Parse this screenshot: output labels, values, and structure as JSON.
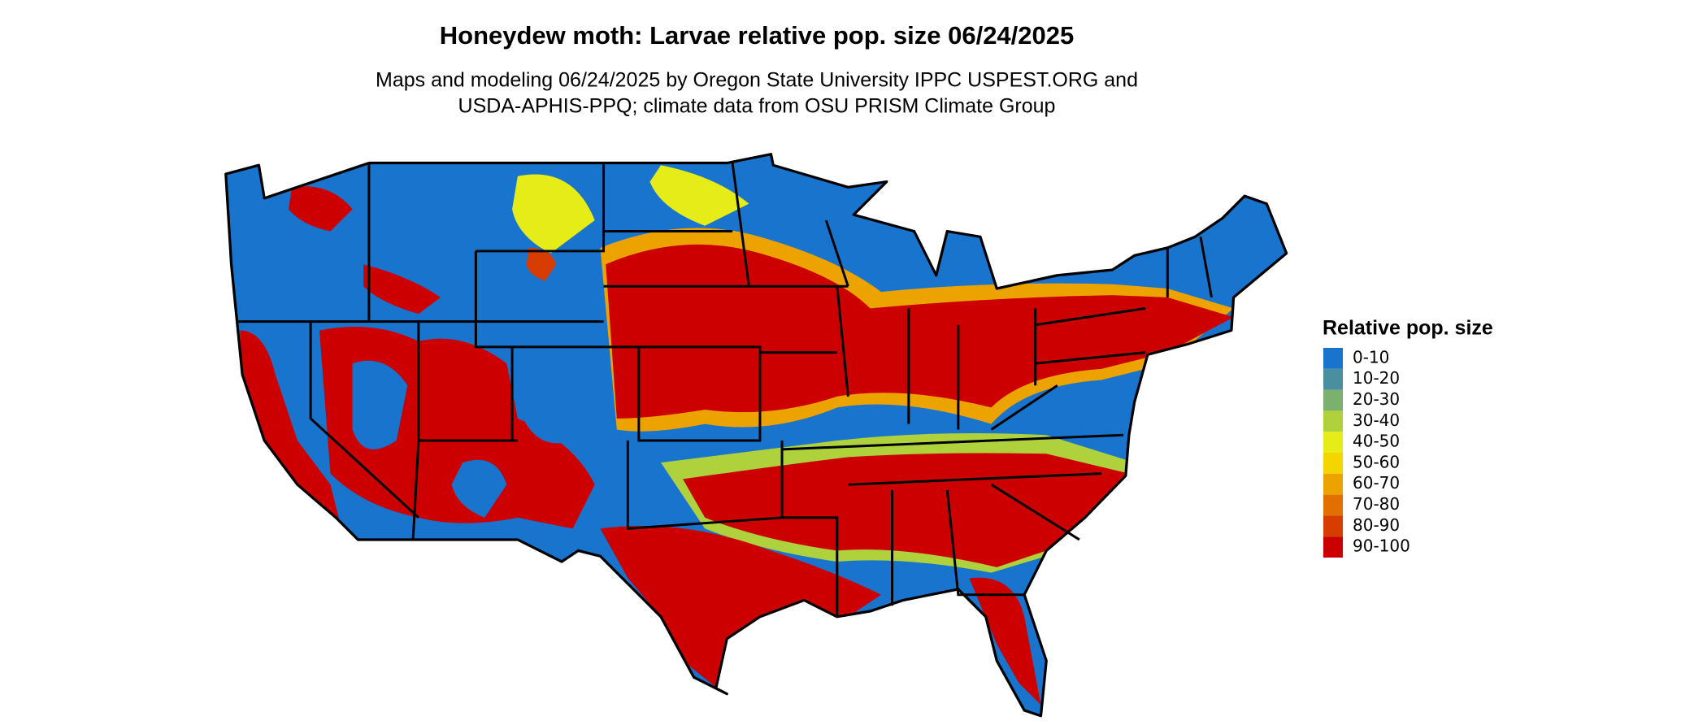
{
  "title": "Honeydew moth: Larvae relative pop. size 06/24/2025",
  "subtitle": [
    "Maps and modeling 06/24/2025 by Oregon State University IPPC USPEST.ORG and",
    "USDA-APHIS-PPQ; climate data from OSU PRISM Climate Group"
  ],
  "legend": {
    "title": "Relative pop. size",
    "items": [
      {
        "label": "0-10",
        "color": "#1874cd"
      },
      {
        "label": "10-20",
        "color": "#4a8fa0"
      },
      {
        "label": "20-30",
        "color": "#7bb06e"
      },
      {
        "label": "30-40",
        "color": "#afd13c"
      },
      {
        "label": "40-50",
        "color": "#e5ec18"
      },
      {
        "label": "50-60",
        "color": "#f5d500"
      },
      {
        "label": "60-70",
        "color": "#eca300"
      },
      {
        "label": "70-80",
        "color": "#e17000"
      },
      {
        "label": "80-90",
        "color": "#d73c00"
      },
      {
        "label": "90-100",
        "color": "#cc0000"
      }
    ]
  }
}
